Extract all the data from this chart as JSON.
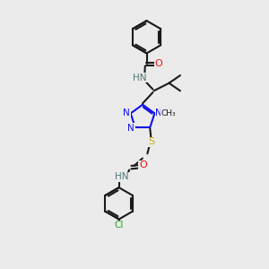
{
  "background_color": "#ebebeb",
  "colors": {
    "C": "#1a1a1a",
    "N": "#1010ee",
    "O": "#ee1010",
    "S": "#ccaa00",
    "Cl": "#22aa22",
    "NH": "#557777",
    "bond": "#1a1a1a"
  },
  "figsize": [
    3.0,
    3.0
  ],
  "dpi": 100,
  "xlim": [
    0,
    10
  ],
  "ylim": [
    0,
    13
  ]
}
